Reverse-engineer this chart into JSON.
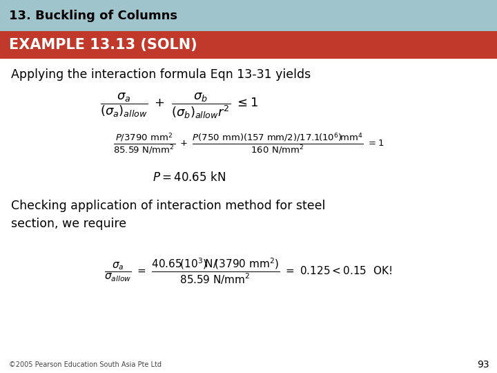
{
  "title": "13. Buckling of Columns",
  "subtitle": "EXAMPLE 13.13 (SOLN)",
  "title_bg": "#a0c4cc",
  "subtitle_bg": "#c0392b",
  "slide_bg": "#ffffff",
  "title_color": "#000000",
  "subtitle_color": "#ffffff",
  "footer": "©2005 Pearson Education South Asia Pte Ltd",
  "page_number": "93",
  "body_text1": "Applying the interaction formula Eqn 13-31 yields",
  "body_text2_line1": "Checking application of interaction method for steel",
  "body_text2_line2": "section, we require"
}
